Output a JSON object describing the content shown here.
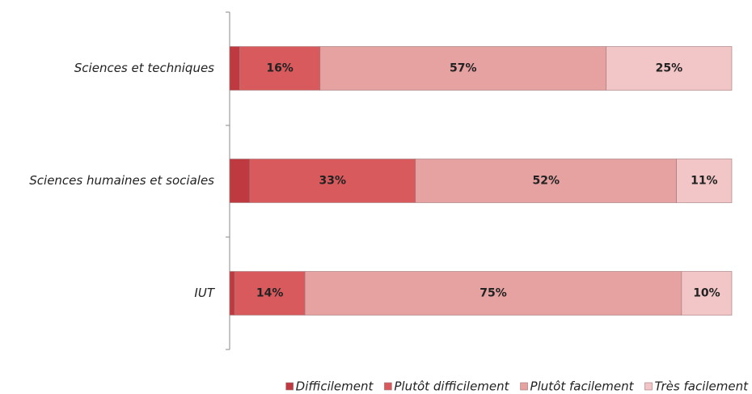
{
  "chart_data": {
    "type": "stacked_barh",
    "categories": [
      "Sciences et techniques",
      "Sciences humaines et sociales",
      "IUT"
    ],
    "series": [
      {
        "name": "Difficilement",
        "color": "#bf3a40",
        "values": [
          2,
          4,
          1
        ]
      },
      {
        "name": "Plutôt difficilement",
        "color": "#d95a5d",
        "values": [
          16,
          33,
          14
        ],
        "value_labels": [
          "16%",
          "33%",
          "14%"
        ]
      },
      {
        "name": "Plutôt facilement",
        "color": "#e6a1a1",
        "values": [
          57,
          52,
          75
        ],
        "value_labels": [
          "57%",
          "52%",
          "75%"
        ]
      },
      {
        "name": "Très facilement",
        "color": "#f2c6c6",
        "values": [
          25,
          11,
          10
        ],
        "value_labels": [
          "25%",
          "11%",
          "10%"
        ]
      }
    ],
    "xlim": [
      0,
      100
    ],
    "legend": "bottom"
  }
}
